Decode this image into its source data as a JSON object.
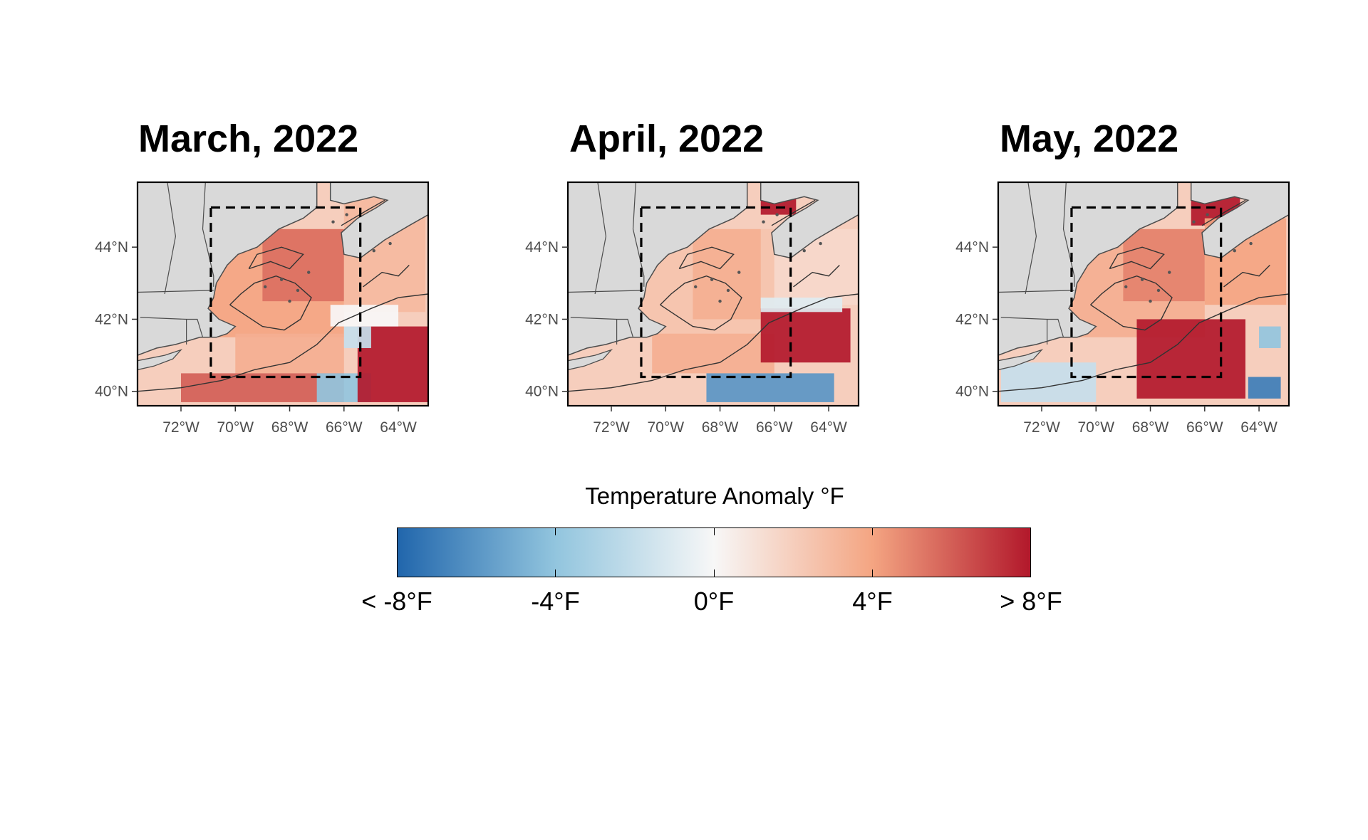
{
  "panels": [
    {
      "title": "March, 2022",
      "anomaly_cells": [
        {
          "lon": [
            -72,
            -66
          ],
          "lat": [
            41.5,
            44.5
          ],
          "anomaly_f": 4
        },
        {
          "lon": [
            -69,
            -66
          ],
          "lat": [
            42.5,
            44.5
          ],
          "anomaly_f": 5.5
        },
        {
          "lon": [
            -70,
            -66
          ],
          "lat": [
            40.5,
            41.6
          ],
          "anomaly_f": 3.5
        },
        {
          "lon": [
            -72,
            -66
          ],
          "lat": [
            39.7,
            40.5
          ],
          "anomaly_f": 6
        },
        {
          "lon": [
            -67,
            -65
          ],
          "lat": [
            39.7,
            40.5
          ],
          "anomaly_f": -4
        },
        {
          "lon": [
            -66,
            -63
          ],
          "lat": [
            42.2,
            45.5
          ],
          "anomaly_f": 3
        },
        {
          "lon": [
            -65.5,
            -62.9
          ],
          "lat": [
            39.7,
            41.8
          ],
          "anomaly_f": 9
        },
        {
          "lon": [
            -66,
            -65
          ],
          "lat": [
            41.2,
            41.8
          ],
          "anomaly_f": -2
        },
        {
          "lon": [
            -66.5,
            -64
          ],
          "lat": [
            41.8,
            42.4
          ],
          "anomaly_f": 0
        }
      ]
    },
    {
      "title": "April, 2022",
      "anomaly_cells": [
        {
          "lon": [
            -72,
            -66
          ],
          "lat": [
            41.5,
            44.5
          ],
          "anomaly_f": 2.5
        },
        {
          "lon": [
            -69,
            -66.5
          ],
          "lat": [
            42,
            44.5
          ],
          "anomaly_f": 3.5
        },
        {
          "lon": [
            -70.5,
            -66
          ],
          "lat": [
            40.5,
            41.6
          ],
          "anomaly_f": 3.5
        },
        {
          "lon": [
            -68.5,
            -63.8
          ],
          "lat": [
            39.7,
            40.5
          ],
          "anomaly_f": -6
        },
        {
          "lon": [
            -66.5,
            -63.2
          ],
          "lat": [
            40.8,
            42.3
          ],
          "anomaly_f": 9
        },
        {
          "lon": [
            -66,
            -62.9
          ],
          "lat": [
            42.4,
            44.5
          ],
          "anomaly_f": 1.5
        },
        {
          "lon": [
            -66.5,
            -65.2
          ],
          "lat": [
            44.9,
            45.6
          ],
          "anomaly_f": 9
        },
        {
          "lon": [
            -66.5,
            -63.5
          ],
          "lat": [
            42.2,
            42.6
          ],
          "anomaly_f": -1
        }
      ]
    },
    {
      "title": "May, 2022",
      "anomaly_cells": [
        {
          "lon": [
            -72,
            -66
          ],
          "lat": [
            41.5,
            44.5
          ],
          "anomaly_f": 3.5
        },
        {
          "lon": [
            -69,
            -66
          ],
          "lat": [
            42.5,
            44.5
          ],
          "anomaly_f": 5
        },
        {
          "lon": [
            -68.5,
            -64.5
          ],
          "lat": [
            39.8,
            42
          ],
          "anomaly_f": 9
        },
        {
          "lon": [
            -66.5,
            -64.7
          ],
          "lat": [
            44.6,
            45.6
          ],
          "anomaly_f": 9
        },
        {
          "lon": [
            -73.5,
            -70
          ],
          "lat": [
            39.7,
            40.8
          ],
          "anomaly_f": -2
        },
        {
          "lon": [
            -64.4,
            -63.2
          ],
          "lat": [
            39.8,
            40.4
          ],
          "anomaly_f": -7
        },
        {
          "lon": [
            -64,
            -63.2
          ],
          "lat": [
            41.2,
            41.8
          ],
          "anomaly_f": -4
        },
        {
          "lon": [
            -66,
            -63
          ],
          "lat": [
            42.4,
            44.8
          ],
          "anomaly_f": 4
        }
      ]
    }
  ],
  "axes": {
    "lon_ticks": [
      "72°W",
      "70°W",
      "68°W",
      "66°W",
      "64°W"
    ],
    "lat_ticks": [
      "44°N",
      "42°N",
      "40°N"
    ],
    "lon_range": [
      -73.6,
      -62.9
    ],
    "lat_range": [
      39.6,
      45.8
    ]
  },
  "study_box": {
    "lon": [
      -70.9,
      -65.4
    ],
    "lat": [
      40.4,
      45.1
    ]
  },
  "legend": {
    "title": "Temperature Anomaly °F",
    "labels": [
      "< -8°F",
      "-4°F",
      "0°F",
      "4°F",
      "> 8°F"
    ],
    "range": [
      -8,
      8
    ],
    "colors": [
      "#2166ac",
      "#92c5de",
      "#f7f7f7",
      "#f4a582",
      "#b2182b"
    ]
  },
  "colors": {
    "land": "#d9d9d9",
    "coast": "#4d4d4d",
    "box": "#000000",
    "ocean_base_anomaly_f": 2
  }
}
